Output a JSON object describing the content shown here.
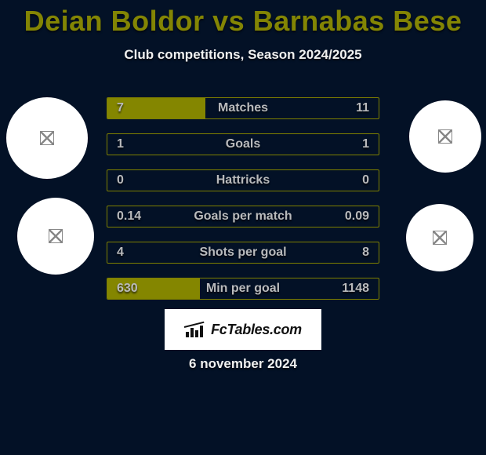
{
  "title": "Deian Boldor vs Barnabas Bese",
  "subtitle": "Club competitions, Season 2024/2025",
  "date": "6 november 2024",
  "badge_text": "FcTables.com",
  "colors": {
    "background": "#031126",
    "accent": "#848600",
    "title": "#838504",
    "bar_border": "#7e7f00",
    "text_dim": "#b9babc",
    "circle_bg": "#ffffff"
  },
  "rows": [
    {
      "label": "Matches",
      "left": "7",
      "right": "11",
      "left_pct": 36,
      "right_pct": 0
    },
    {
      "label": "Goals",
      "left": "1",
      "right": "1",
      "left_pct": 0,
      "right_pct": 0
    },
    {
      "label": "Hattricks",
      "left": "0",
      "right": "0",
      "left_pct": 0,
      "right_pct": 0
    },
    {
      "label": "Goals per match",
      "left": "0.14",
      "right": "0.09",
      "left_pct": 0,
      "right_pct": 0
    },
    {
      "label": "Shots per goal",
      "left": "4",
      "right": "8",
      "left_pct": 0,
      "right_pct": 0
    },
    {
      "label": "Min per goal",
      "left": "630",
      "right": "1148",
      "left_pct": 34,
      "right_pct": 0
    }
  ]
}
